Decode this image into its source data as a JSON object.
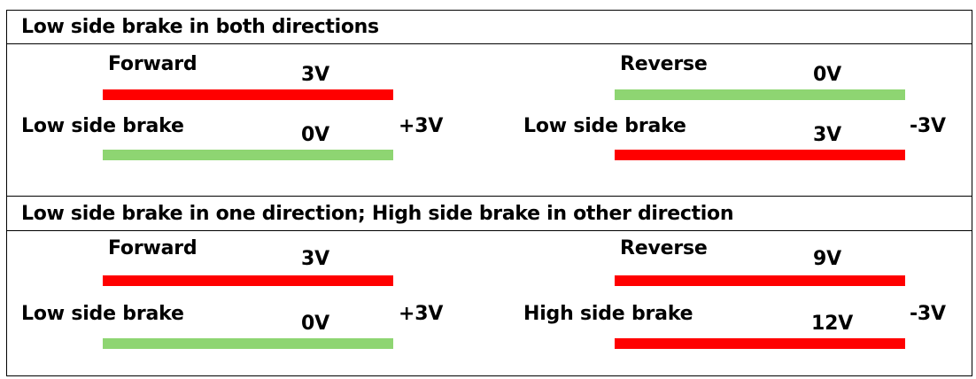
{
  "colors": {
    "red": "#ff0000",
    "green": "#8ed572",
    "border": "#000000"
  },
  "sections": [
    {
      "title": "Low side brake in both directions",
      "left": {
        "row1_label": "Forward",
        "row1_voltage": "3V",
        "row1_bar": "red",
        "row2_label": "Low side brake",
        "row2_voltage": "0V",
        "row2_bar": "green",
        "diff": "+3V"
      },
      "right": {
        "row1_label": "Reverse",
        "row1_voltage": "0V",
        "row1_bar": "green",
        "row2_label": "Low side brake",
        "row2_voltage": "3V",
        "row2_bar": "red",
        "diff": "-3V"
      }
    },
    {
      "title": "Low side brake in one direction; High side brake in other direction",
      "left": {
        "row1_label": "Forward",
        "row1_voltage": "3V",
        "row1_bar": "red",
        "row2_label": "Low side brake",
        "row2_voltage": "0V",
        "row2_bar": "green",
        "diff": "+3V"
      },
      "right": {
        "row1_label": "Reverse",
        "row1_voltage": "9V",
        "row1_bar": "red",
        "row2_label": "High side brake",
        "row2_voltage": "12V",
        "row2_bar": "red",
        "diff": "-3V"
      }
    }
  ]
}
